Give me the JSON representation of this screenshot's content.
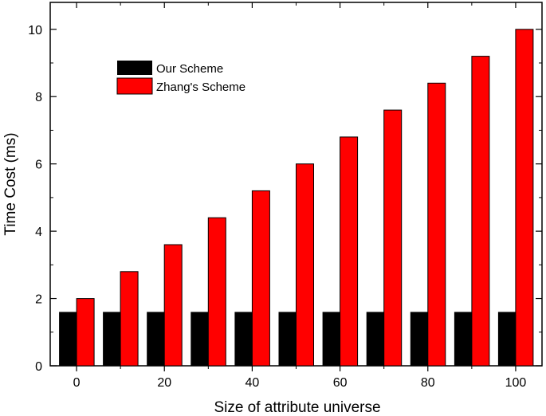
{
  "chart_data": {
    "type": "bar",
    "title": "",
    "xlabel": "Size of attribute universe",
    "ylabel": "Time Cost (ms)",
    "x": [
      0,
      10,
      20,
      30,
      40,
      50,
      60,
      70,
      80,
      90,
      100
    ],
    "xticks": [
      "0",
      "20",
      "40",
      "60",
      "80",
      "100"
    ],
    "yticks": [
      "0",
      "2",
      "4",
      "6",
      "8",
      "10"
    ],
    "xlim": [
      -6,
      106
    ],
    "ylim": [
      0,
      10.8
    ],
    "grid": false,
    "legend_position": "top-left",
    "series": [
      {
        "name": "Our Scheme",
        "color": "#000000",
        "values": [
          1.6,
          1.6,
          1.6,
          1.6,
          1.6,
          1.6,
          1.6,
          1.6,
          1.6,
          1.6,
          1.6
        ]
      },
      {
        "name": "Zhang's Scheme",
        "color": "#ff0000",
        "values": [
          2.0,
          2.8,
          3.6,
          4.4,
          5.2,
          6.0,
          6.8,
          7.6,
          8.4,
          9.2,
          10.0
        ]
      }
    ]
  }
}
